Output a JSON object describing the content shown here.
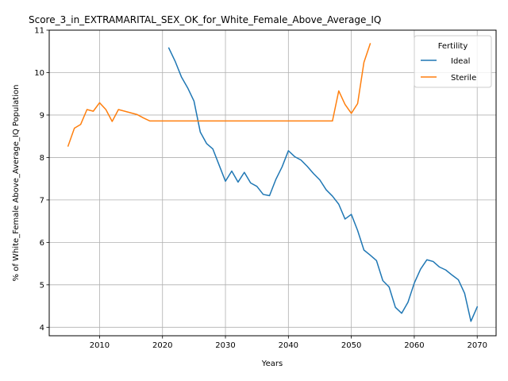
{
  "chart_data": {
    "type": "line",
    "title": "Score_3_in_EXTRAMARITAL_SEX_OK_for_White_Female_Above_Average_IQ",
    "xlabel": "Years",
    "ylabel": "% of White_Female Above_Average_IQ Population",
    "xlim": [
      2002,
      2073
    ],
    "ylim": [
      3.8,
      11.0
    ],
    "xticks": [
      2010,
      2020,
      2030,
      2040,
      2050,
      2060,
      2070
    ],
    "yticks": [
      4,
      5,
      6,
      7,
      8,
      9,
      10,
      11
    ],
    "grid": true,
    "legend": {
      "title": "Fertility",
      "position": "top-right"
    },
    "series": [
      {
        "name": "Ideal",
        "color": "#1f77b4",
        "x": [
          2021,
          2022,
          2023,
          2024,
          2025,
          2026,
          2027,
          2028,
          2029,
          2030,
          2031,
          2032,
          2033,
          2034,
          2035,
          2036,
          2037,
          2038,
          2039,
          2040,
          2041,
          2042,
          2043,
          2044,
          2045,
          2046,
          2047,
          2048,
          2049,
          2050,
          2051,
          2052,
          2053,
          2054,
          2055,
          2056,
          2057,
          2058,
          2059,
          2060,
          2061,
          2062,
          2063,
          2064,
          2065,
          2066,
          2067,
          2068,
          2069,
          2070
        ],
        "y": [
          10.58,
          10.27,
          9.9,
          9.64,
          9.33,
          8.6,
          8.33,
          8.2,
          7.82,
          7.44,
          7.68,
          7.42,
          7.65,
          7.4,
          7.32,
          7.13,
          7.1,
          7.48,
          7.78,
          8.16,
          8.02,
          7.94,
          7.79,
          7.62,
          7.47,
          7.24,
          7.09,
          6.9,
          6.55,
          6.66,
          6.28,
          5.82,
          5.7,
          5.57,
          5.1,
          4.95,
          4.47,
          4.33,
          4.59,
          5.04,
          5.37,
          5.59,
          5.55,
          5.42,
          5.35,
          5.23,
          5.12,
          4.8,
          4.14,
          4.48
        ]
      },
      {
        "name": "Sterile",
        "color": "#ff7f0e",
        "x": [
          2005,
          2006,
          2007,
          2008,
          2009,
          2010,
          2011,
          2012,
          2013,
          2014,
          2015,
          2016,
          2017,
          2018,
          2019,
          2020,
          2025,
          2030,
          2035,
          2040,
          2045,
          2047,
          2048,
          2049,
          2050,
          2051,
          2052,
          2053
        ],
        "y": [
          8.27,
          8.69,
          8.78,
          9.13,
          9.09,
          9.29,
          9.13,
          8.85,
          9.13,
          9.09,
          9.05,
          9.01,
          8.93,
          8.86,
          8.86,
          8.86,
          8.86,
          8.86,
          8.86,
          8.86,
          8.86,
          8.86,
          9.57,
          9.25,
          9.04,
          9.27,
          10.24,
          10.68
        ]
      }
    ]
  }
}
